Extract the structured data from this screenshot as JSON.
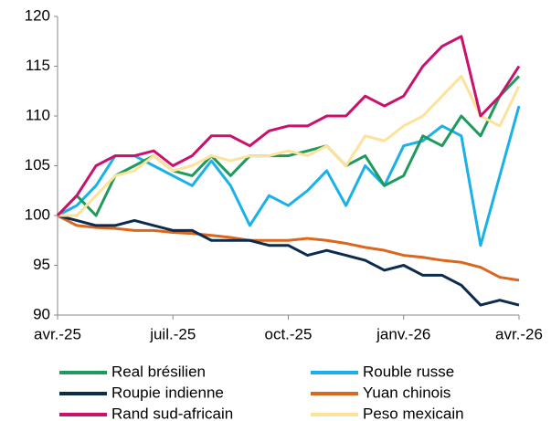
{
  "chart_data": {
    "type": "line",
    "x": [
      0,
      0.5,
      1,
      1.5,
      2,
      2.5,
      3,
      3.5,
      4,
      4.5,
      5,
      5.5,
      6,
      6.5,
      7,
      7.5,
      8,
      8.5,
      9,
      9.5,
      10,
      10.5,
      11,
      11.5,
      12
    ],
    "xlim": [
      0,
      12
    ],
    "xticks": [
      {
        "value": 0,
        "label": "avr.-25"
      },
      {
        "value": 3,
        "label": "juil.-25"
      },
      {
        "value": 6,
        "label": "oct.-25"
      },
      {
        "value": 9,
        "label": "janv.-26"
      },
      {
        "value": 12,
        "label": "avr.-26"
      }
    ],
    "ylim": [
      90,
      120
    ],
    "yticks": [
      90,
      95,
      100,
      105,
      110,
      115,
      120
    ],
    "grid": false,
    "legend": "bottom",
    "series": [
      {
        "name": "Real brésilien",
        "color": "#1e9b5a",
        "values": [
          100,
          102,
          100,
          104,
          105,
          106,
          104.5,
          104,
          106,
          104,
          106,
          106,
          106,
          106.5,
          107,
          105,
          106,
          103,
          104,
          108,
          107,
          110,
          108,
          112,
          114
        ]
      },
      {
        "name": "Rouble russe",
        "color": "#1ab0e8",
        "values": [
          100,
          101,
          103,
          106,
          106,
          105,
          104,
          103,
          105.5,
          103,
          99,
          102,
          101,
          102.5,
          104.5,
          101,
          105,
          103,
          107,
          107.5,
          109,
          108,
          97,
          104,
          111
        ]
      },
      {
        "name": "Roupie indienne",
        "color": "#0d2b4e",
        "values": [
          100,
          99.5,
          99,
          99,
          99.5,
          99,
          98.5,
          98.5,
          97.5,
          97.5,
          97.5,
          97,
          97,
          96,
          96.5,
          96,
          95.5,
          94.5,
          95,
          94,
          94,
          93,
          91,
          91.5,
          91
        ]
      },
      {
        "name": "Yuan chinois",
        "color": "#d9671e",
        "values": [
          100,
          99,
          98.8,
          98.7,
          98.5,
          98.5,
          98.3,
          98.2,
          98,
          97.8,
          97.5,
          97.5,
          97.5,
          97.7,
          97.5,
          97.2,
          96.8,
          96.5,
          96,
          95.8,
          95.5,
          95.3,
          94.8,
          93.8,
          93.5
        ]
      },
      {
        "name": "Rand sud-africain",
        "color": "#c8126e",
        "values": [
          100,
          102,
          105,
          106,
          106,
          106.5,
          105,
          106,
          108,
          108,
          107,
          108.5,
          109,
          109,
          110,
          110,
          112,
          111,
          112,
          115,
          117,
          118,
          110,
          112,
          115
        ]
      },
      {
        "name": "Peso mexicain",
        "color": "#fde29a",
        "values": [
          100,
          100,
          102,
          104,
          104.5,
          106,
          104.5,
          105,
          106,
          105.5,
          106,
          106,
          106.5,
          106,
          107,
          105,
          108,
          107.5,
          109,
          110,
          112,
          114,
          110,
          109,
          113
        ]
      }
    ]
  }
}
